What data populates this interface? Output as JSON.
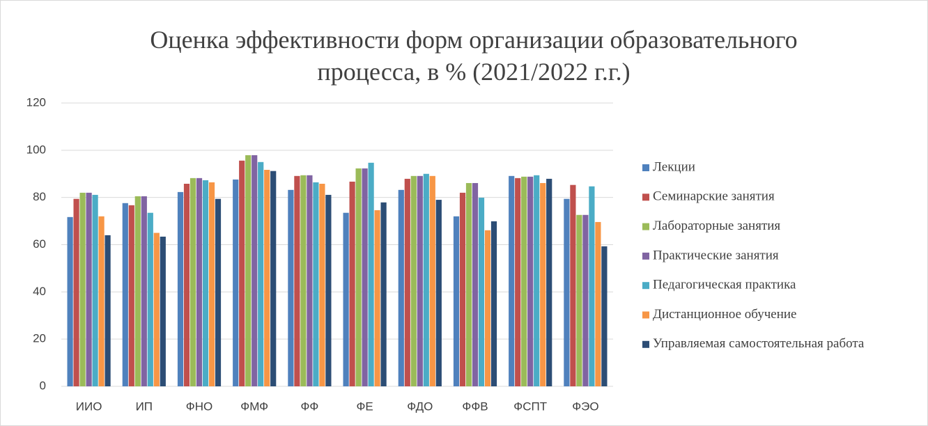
{
  "chart_data": {
    "type": "bar",
    "title": "Оценка эффективности форм организации образовательного процесса, в % (2021/2022 г.г.)",
    "categories": [
      "ИИО",
      "ИП",
      "ФНО",
      "ФМФ",
      "ФФ",
      "ФЕ",
      "ФДО",
      "ФФВ",
      "ФСПТ",
      "ФЭО"
    ],
    "series": [
      {
        "name": "Лекции",
        "color": "#4f81bd",
        "values": [
          71.7,
          77.6,
          82.3,
          87.6,
          83.2,
          73.5,
          83.2,
          72,
          89.1,
          79.4
        ]
      },
      {
        "name": "Семинарские занятия",
        "color": "#c0504d",
        "values": [
          79.4,
          76.7,
          85.8,
          95.6,
          89.1,
          86.7,
          87.9,
          82,
          88.2,
          85.3
        ]
      },
      {
        "name": "Лабораторные занятия",
        "color": "#9bbb59",
        "values": [
          82,
          80.5,
          88.2,
          97.9,
          89.4,
          92.3,
          89.1,
          86.1,
          88.8,
          72.6
        ]
      },
      {
        "name": "Практические занятия",
        "color": "#8064a2",
        "values": [
          82,
          80.5,
          88.2,
          97.9,
          89.4,
          92.3,
          89.1,
          86.1,
          88.8,
          72.6
        ]
      },
      {
        "name": "Педагогическая практика",
        "color": "#4bacc6",
        "values": [
          81.1,
          73.5,
          87.3,
          95,
          86.4,
          94.7,
          90,
          79.9,
          89.4,
          84.7
        ]
      },
      {
        "name": "Дистанционное обучение",
        "color": "#f79646",
        "values": [
          72,
          65,
          86.4,
          91.7,
          85.8,
          74.6,
          89.1,
          66.1,
          86.1,
          69.6
        ]
      },
      {
        "name": "Управляемая самостоятельная работа",
        "color": "#2c4d75",
        "values": [
          64,
          63.4,
          79.4,
          91.2,
          81.1,
          77.9,
          79,
          69.9,
          87.9,
          59.3
        ]
      }
    ],
    "ylim": [
      0,
      120
    ],
    "yticks": [
      0,
      20,
      40,
      60,
      80,
      100,
      120
    ],
    "grid": true,
    "legend": "right"
  }
}
